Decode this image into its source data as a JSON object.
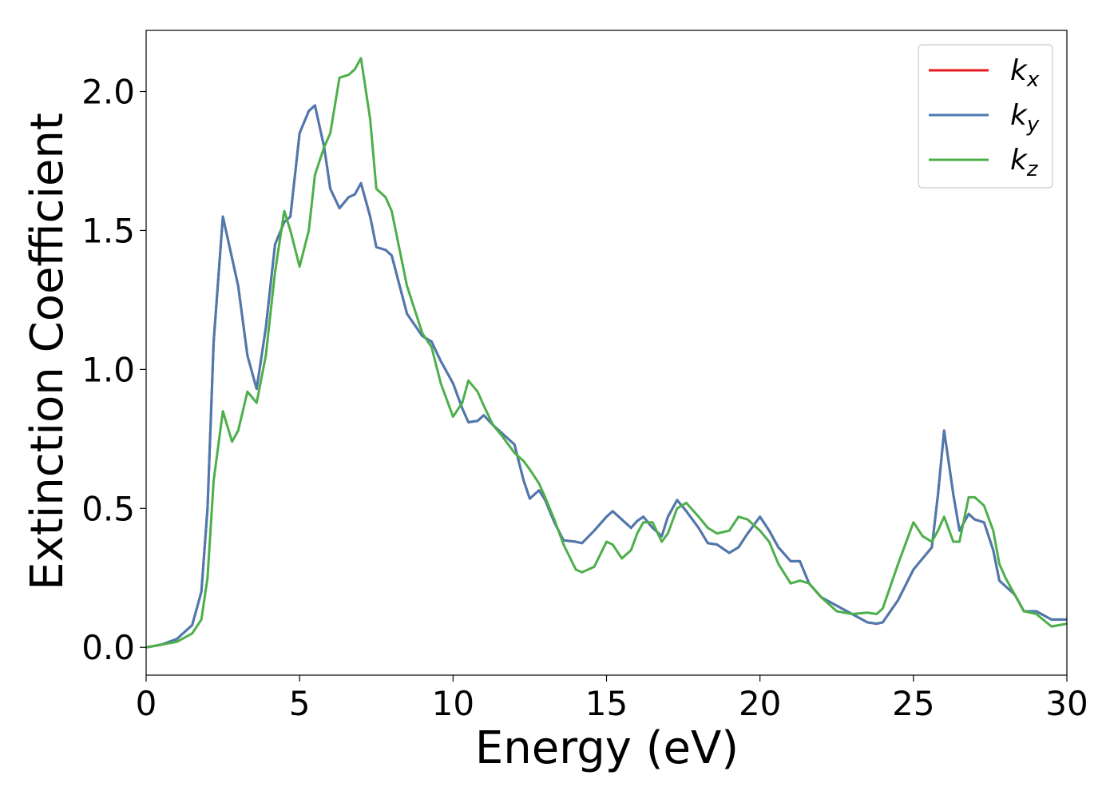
{
  "chart_data": {
    "type": "line",
    "x_label": "Energy (eV)",
    "y_label": "Extinction Coefficient",
    "xlim": [
      0,
      30
    ],
    "ylim": [
      -0.1,
      2.22
    ],
    "xticks": [
      0,
      5,
      10,
      15,
      20,
      25,
      30
    ],
    "yticks": [
      {
        "value": 0,
        "label": "0.0"
      },
      0.5,
      {
        "value": 1,
        "label": "1.0"
      },
      1.5,
      {
        "value": 2,
        "label": "2.0"
      }
    ],
    "grid": false,
    "legend": "upper right",
    "x": [
      0,
      0.5,
      1,
      1.5,
      1.8,
      2,
      2.2,
      2.5,
      2.8,
      3,
      3.3,
      3.6,
      3.9,
      4.2,
      4.5,
      4.7,
      5,
      5.3,
      5.5,
      5.8,
      6,
      6.3,
      6.6,
      6.8,
      7,
      7.3,
      7.5,
      7.8,
      8,
      8.5,
      9,
      9.3,
      9.6,
      10,
      10.3,
      10.5,
      10.8,
      11,
      11.3,
      11.6,
      12,
      12.3,
      12.5,
      12.8,
      13,
      13.3,
      13.6,
      14,
      14.2,
      14.6,
      15,
      15.2,
      15.5,
      15.8,
      16,
      16.2,
      16.5,
      16.8,
      17,
      17.3,
      17.6,
      18,
      18.3,
      18.6,
      19,
      19.3,
      19.6,
      20,
      20.3,
      20.6,
      21,
      21.3,
      21.6,
      22,
      22.5,
      23,
      23.5,
      23.8,
      24,
      24.5,
      25,
      25.3,
      25.6,
      25.8,
      26,
      26.3,
      26.5,
      26.8,
      27,
      27.3,
      27.6,
      27.8,
      28,
      28.3,
      28.6,
      29,
      29.5,
      30
    ],
    "series": [
      {
        "name": "kx",
        "color": "#e41a1c",
        "values": [
          0,
          0.01,
          0.03,
          0.08,
          0.2,
          0.5,
          1.1,
          1.55,
          1.4,
          1.3,
          1.05,
          0.93,
          1.15,
          1.45,
          1.53,
          1.55,
          1.85,
          1.93,
          1.95,
          1.8,
          1.65,
          1.58,
          1.62,
          1.63,
          1.67,
          1.55,
          1.44,
          1.43,
          1.41,
          1.2,
          1.12,
          1.1,
          1.03,
          0.95,
          0.86,
          0.81,
          0.815,
          0.835,
          0.8,
          0.77,
          0.73,
          0.6,
          0.535,
          0.565,
          0.53,
          0.45,
          0.385,
          0.38,
          0.375,
          0.42,
          0.47,
          0.49,
          0.46,
          0.43,
          0.455,
          0.47,
          0.43,
          0.4,
          0.47,
          0.53,
          0.49,
          0.43,
          0.375,
          0.37,
          0.34,
          0.36,
          0.41,
          0.47,
          0.42,
          0.36,
          0.31,
          0.31,
          0.23,
          0.18,
          0.15,
          0.12,
          0.09,
          0.085,
          0.09,
          0.17,
          0.28,
          0.32,
          0.36,
          0.55,
          0.78,
          0.55,
          0.42,
          0.48,
          0.46,
          0.45,
          0.35,
          0.24,
          0.22,
          0.19,
          0.13,
          0.13,
          0.1,
          0.1
        ]
      },
      {
        "name": "ky",
        "color": "#4a7ab0",
        "values": [
          0,
          0.01,
          0.03,
          0.08,
          0.2,
          0.5,
          1.1,
          1.55,
          1.4,
          1.3,
          1.05,
          0.93,
          1.15,
          1.45,
          1.53,
          1.55,
          1.85,
          1.93,
          1.95,
          1.8,
          1.65,
          1.58,
          1.62,
          1.63,
          1.67,
          1.55,
          1.44,
          1.43,
          1.41,
          1.2,
          1.12,
          1.1,
          1.03,
          0.95,
          0.86,
          0.81,
          0.815,
          0.835,
          0.8,
          0.77,
          0.73,
          0.6,
          0.535,
          0.565,
          0.53,
          0.45,
          0.385,
          0.38,
          0.375,
          0.42,
          0.47,
          0.49,
          0.46,
          0.43,
          0.455,
          0.47,
          0.43,
          0.4,
          0.47,
          0.53,
          0.49,
          0.43,
          0.375,
          0.37,
          0.34,
          0.36,
          0.41,
          0.47,
          0.42,
          0.36,
          0.31,
          0.31,
          0.23,
          0.18,
          0.15,
          0.12,
          0.09,
          0.085,
          0.09,
          0.17,
          0.28,
          0.32,
          0.36,
          0.55,
          0.78,
          0.55,
          0.42,
          0.48,
          0.46,
          0.45,
          0.35,
          0.24,
          0.22,
          0.19,
          0.13,
          0.13,
          0.1,
          0.1
        ]
      },
      {
        "name": "kz",
        "color": "#4daf4a",
        "values": [
          0,
          0.01,
          0.02,
          0.05,
          0.1,
          0.25,
          0.6,
          0.85,
          0.74,
          0.78,
          0.92,
          0.88,
          1.05,
          1.35,
          1.57,
          1.5,
          1.37,
          1.5,
          1.7,
          1.8,
          1.85,
          2.05,
          2.06,
          2.08,
          2.12,
          1.9,
          1.65,
          1.62,
          1.57,
          1.3,
          1.13,
          1.08,
          0.95,
          0.83,
          0.88,
          0.96,
          0.92,
          0.87,
          0.8,
          0.76,
          0.7,
          0.67,
          0.64,
          0.59,
          0.54,
          0.46,
          0.37,
          0.28,
          0.27,
          0.29,
          0.38,
          0.37,
          0.32,
          0.35,
          0.41,
          0.45,
          0.45,
          0.38,
          0.41,
          0.5,
          0.52,
          0.47,
          0.43,
          0.41,
          0.42,
          0.47,
          0.46,
          0.42,
          0.38,
          0.3,
          0.23,
          0.24,
          0.23,
          0.18,
          0.13,
          0.12,
          0.125,
          0.12,
          0.14,
          0.3,
          0.45,
          0.4,
          0.38,
          0.42,
          0.47,
          0.38,
          0.38,
          0.54,
          0.54,
          0.51,
          0.42,
          0.3,
          0.25,
          0.19,
          0.13,
          0.12,
          0.075,
          0.085
        ]
      }
    ]
  }
}
